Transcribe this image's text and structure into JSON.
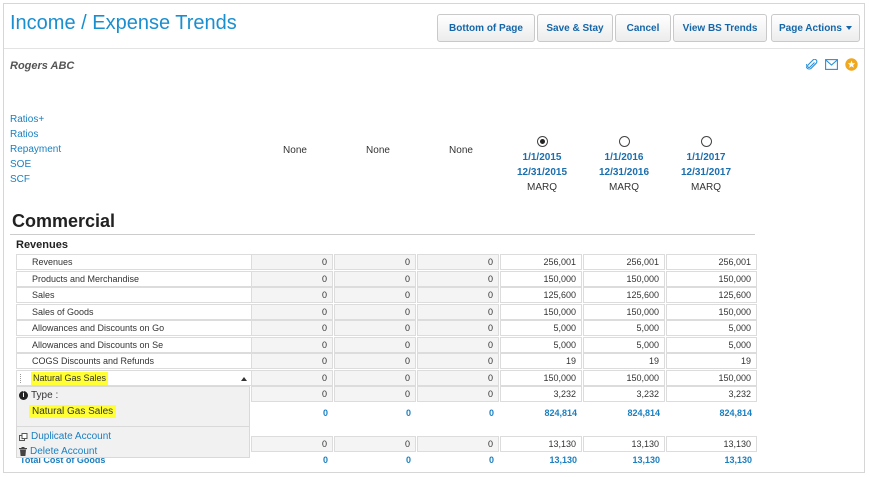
{
  "page": {
    "title": "Income / Expense Trends",
    "client": "Rogers ABC"
  },
  "toolbar": {
    "bottom": "Bottom of Page",
    "save_stay": "Save & Stay",
    "cancel": "Cancel",
    "bs_trends": "View BS Trends",
    "page_actions": "Page Actions"
  },
  "icons": [
    "paperclip-icon",
    "email-icon",
    "star-icon"
  ],
  "nav": [
    "Ratios+",
    "Ratios",
    "Repayment",
    "SOE",
    "SCF"
  ],
  "columns": {
    "empty": [
      "None",
      "None",
      "None"
    ],
    "periods": [
      {
        "start": "1/1/2015",
        "end": "12/31/2015",
        "source": "MARQ",
        "selected": true
      },
      {
        "start": "1/1/2016",
        "end": "12/31/2016",
        "source": "MARQ",
        "selected": false
      },
      {
        "start": "1/1/2017",
        "end": "12/31/2017",
        "source": "MARQ",
        "selected": false
      }
    ]
  },
  "section": {
    "title": "Commercial",
    "subtitle": "Revenues"
  },
  "rows": [
    {
      "label": "Revenues",
      "values": [
        "0",
        "0",
        "0",
        "256,001",
        "256,001",
        "256,001"
      ]
    },
    {
      "label": "Products and Merchandise",
      "values": [
        "0",
        "0",
        "0",
        "150,000",
        "150,000",
        "150,000"
      ]
    },
    {
      "label": "Sales",
      "values": [
        "0",
        "0",
        "0",
        "125,600",
        "125,600",
        "125,600"
      ]
    },
    {
      "label": "Sales of Goods",
      "values": [
        "0",
        "0",
        "0",
        "150,000",
        "150,000",
        "150,000"
      ]
    },
    {
      "label": "Allowances and Discounts on Go",
      "values": [
        "0",
        "0",
        "0",
        "5,000",
        "5,000",
        "5,000"
      ]
    },
    {
      "label": "Allowances and Discounts on Se",
      "values": [
        "0",
        "0",
        "0",
        "5,000",
        "5,000",
        "5,000"
      ]
    },
    {
      "label": "COGS Discounts and Refunds",
      "values": [
        "0",
        "0",
        "0",
        "19",
        "19",
        "19"
      ]
    },
    {
      "label": "Natural Gas Sales",
      "values": [
        "0",
        "0",
        "0",
        "150,000",
        "150,000",
        "150,000"
      ]
    },
    {
      "label": "",
      "values": [
        "0",
        "0",
        "0",
        "3,232",
        "3,232",
        "3,232"
      ]
    }
  ],
  "total_revenues": {
    "values": [
      "0",
      "0",
      "0",
      "824,814",
      "824,814",
      "824,814"
    ]
  },
  "cogs_row": {
    "values": [
      "0",
      "0",
      "0",
      "13,130",
      "13,130",
      "13,130"
    ]
  },
  "total_cogs": {
    "label": "Total Cost of Goods",
    "values": [
      "0",
      "0",
      "0",
      "13,130",
      "13,130",
      "13,130"
    ]
  },
  "popup": {
    "type_label": "Type :",
    "type_value": "Natural Gas Sales",
    "duplicate": "Duplicate Account",
    "delete": "Delete Account"
  }
}
